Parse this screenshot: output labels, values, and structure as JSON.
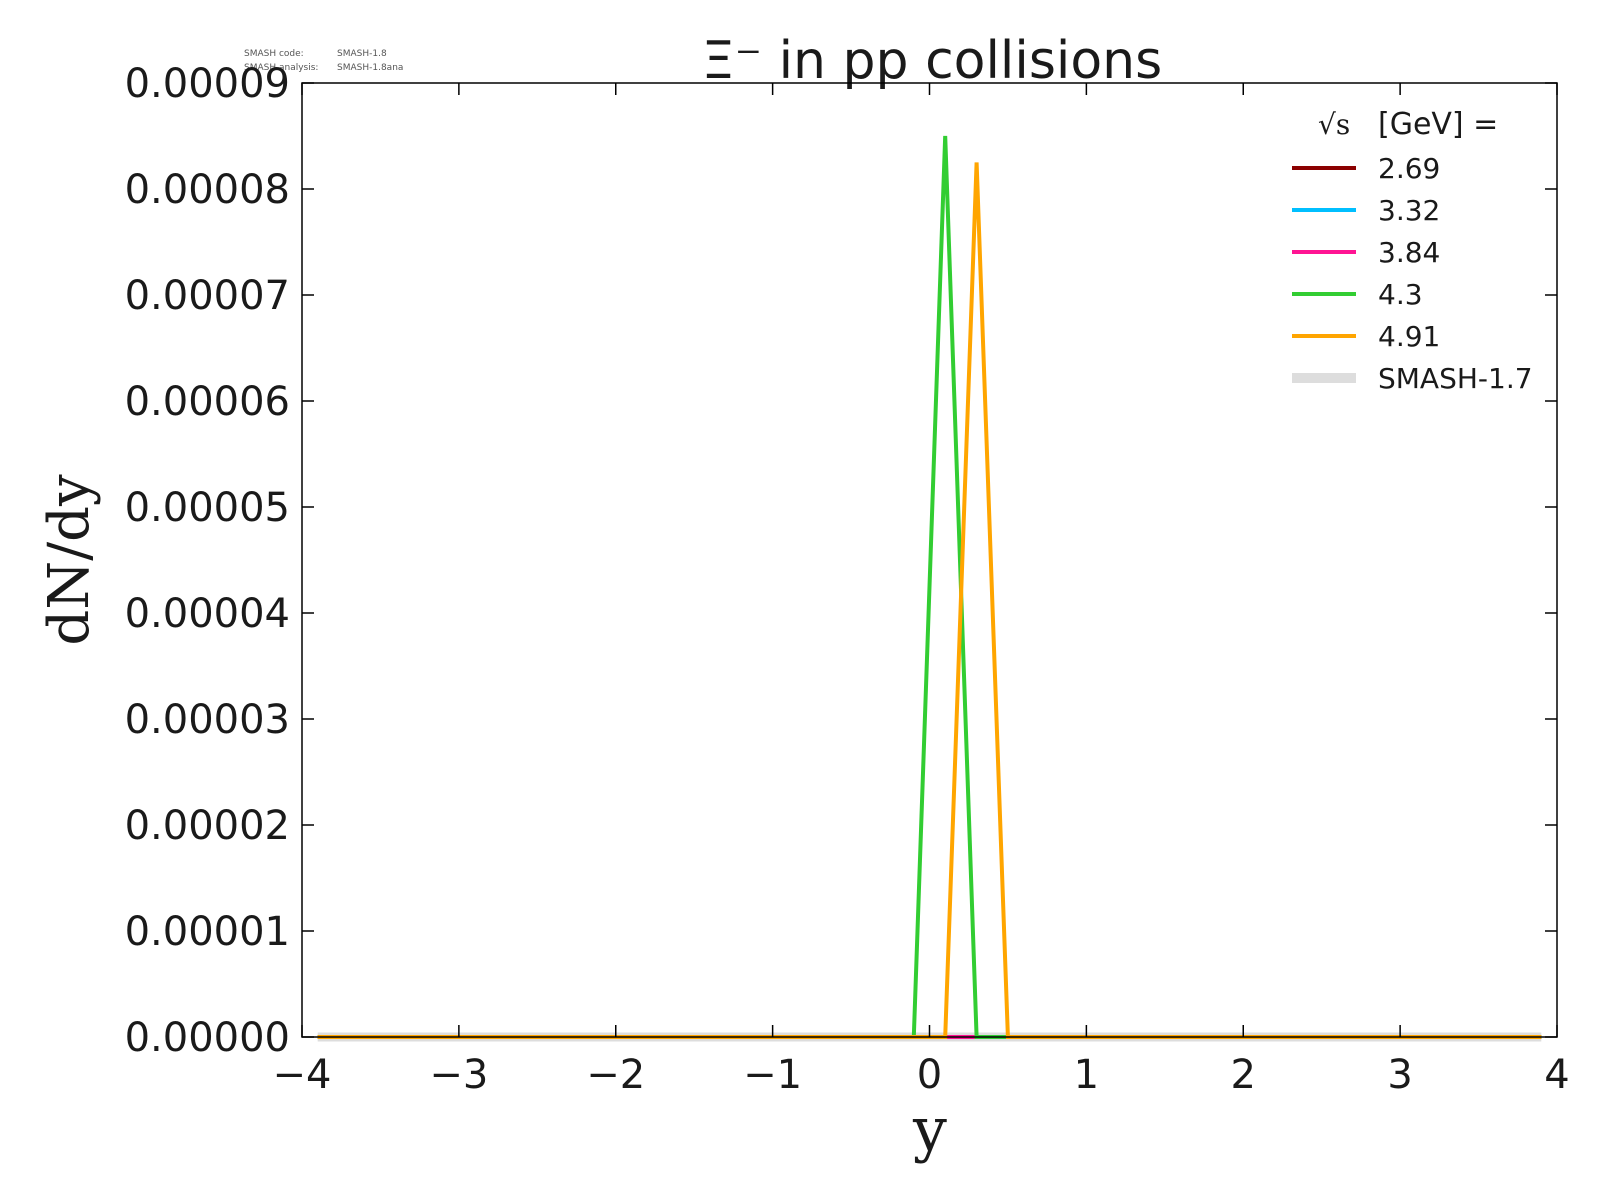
{
  "meta": {
    "code_label": "SMASH code:",
    "code_value": "SMASH-1.8",
    "analysis_label": "SMASH analysis:",
    "analysis_value": "SMASH-1.8ana"
  },
  "chart_data": {
    "type": "line",
    "title": "Ξ⁻ in pp collisions",
    "xlabel": "y",
    "ylabel": "dN/dy",
    "xlim": [
      -4,
      4
    ],
    "ylim": [
      0,
      9e-05
    ],
    "xticks": [
      "−4",
      "−3",
      "−2",
      "−1",
      "0",
      "1",
      "2",
      "3",
      "4"
    ],
    "yticks": [
      "0.00000",
      "0.00001",
      "0.00002",
      "0.00003",
      "0.00004",
      "0.00005",
      "0.00006",
      "0.00007",
      "0.00008",
      "0.00009"
    ],
    "grid": false,
    "legend_title_sqrt": "√s",
    "legend_title_rest": "[GeV] =",
    "legend_position": "top-right",
    "series": [
      {
        "name": "2.69",
        "color": "#8b0000",
        "x": [
          -3.9,
          3.9
        ],
        "y": [
          0,
          0
        ]
      },
      {
        "name": "3.32",
        "color": "#00bfff",
        "x": [
          -3.9,
          3.9
        ],
        "y": [
          0,
          0
        ]
      },
      {
        "name": "3.84",
        "color": "#ff1493",
        "x": [
          -3.9,
          3.9
        ],
        "y": [
          0,
          0
        ]
      },
      {
        "name": "4.3",
        "color": "#32cd32",
        "x": [
          -3.9,
          -0.1,
          0.1,
          0.3,
          3.9
        ],
        "y": [
          0,
          0,
          8.5e-05,
          0,
          0
        ]
      },
      {
        "name": "4.91",
        "color": "#ffa500",
        "x": [
          -3.9,
          0.1,
          0.3,
          0.5,
          3.9
        ],
        "y": [
          0,
          0,
          8.25e-05,
          0,
          0
        ]
      }
    ],
    "reference": {
      "name": "SMASH-1.7",
      "color": "#dddddd",
      "x": [
        -3.9,
        3.9
      ],
      "y": [
        0,
        0
      ]
    }
  }
}
